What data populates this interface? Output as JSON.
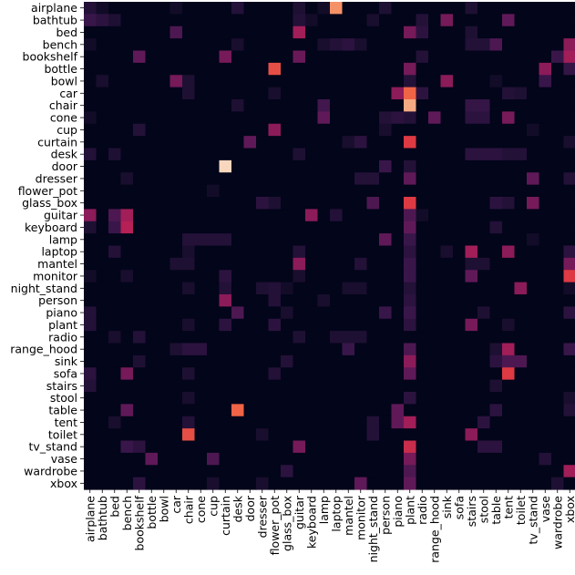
{
  "chart_data": {
    "type": "heatmap",
    "title": "",
    "xlabel": "",
    "ylabel": "",
    "rows": [
      "airplane",
      "bathtub",
      "bed",
      "bench",
      "bookshelf",
      "bottle",
      "bowl",
      "car",
      "chair",
      "cone",
      "cup",
      "curtain",
      "desk",
      "door",
      "dresser",
      "flower_pot",
      "glass_box",
      "guitar",
      "keyboard",
      "lamp",
      "laptop",
      "mantel",
      "monitor",
      "night_stand",
      "person",
      "piano",
      "plant",
      "radio",
      "range_hood",
      "sink",
      "sofa",
      "stairs",
      "stool",
      "table",
      "tent",
      "toilet",
      "tv_stand",
      "vase",
      "wardrobe",
      "xbox"
    ],
    "columns": [
      "airplane",
      "bathtub",
      "bed",
      "bench",
      "bookshelf",
      "bottle",
      "bowl",
      "car",
      "chair",
      "cone",
      "cup",
      "curtain",
      "desk",
      "door",
      "dresser",
      "flower_pot",
      "glass_box",
      "guitar",
      "keyboard",
      "lamp",
      "laptop",
      "mantel",
      "monitor",
      "night_stand",
      "person",
      "piano",
      "plant",
      "radio",
      "range_hood",
      "sink",
      "sofa",
      "stairs",
      "stool",
      "table",
      "tent",
      "toilet",
      "tv_stand",
      "vase",
      "wardrobe",
      "xbox"
    ],
    "value_range": [
      0,
      1
    ],
    "colormap": "rocket",
    "colorbar": false,
    "grid": false,
    "cells": [
      [
        0,
        0,
        0.12
      ],
      [
        0,
        1,
        0.05
      ],
      [
        0,
        7,
        0.06
      ],
      [
        0,
        12,
        0.12
      ],
      [
        0,
        17,
        0.1
      ],
      [
        0,
        19,
        0.06
      ],
      [
        0,
        20,
        0.8
      ],
      [
        0,
        24,
        0.1
      ],
      [
        0,
        31,
        0.1
      ],
      [
        1,
        0,
        0.2
      ],
      [
        1,
        1,
        0.15
      ],
      [
        1,
        2,
        0.1
      ],
      [
        1,
        17,
        0.12
      ],
      [
        1,
        18,
        0.06
      ],
      [
        1,
        23,
        0.08
      ],
      [
        1,
        27,
        0.12
      ],
      [
        1,
        29,
        0.35
      ],
      [
        1,
        34,
        0.3
      ],
      [
        2,
        7,
        0.25
      ],
      [
        2,
        17,
        0.45
      ],
      [
        2,
        26,
        0.35
      ],
      [
        2,
        27,
        0.15
      ],
      [
        2,
        31,
        0.1
      ],
      [
        3,
        0,
        0.06
      ],
      [
        3,
        12,
        0.08
      ],
      [
        3,
        19,
        0.08
      ],
      [
        3,
        20,
        0.12
      ],
      [
        3,
        21,
        0.15
      ],
      [
        3,
        22,
        0.08
      ],
      [
        3,
        31,
        0.12
      ],
      [
        3,
        32,
        0.12
      ],
      [
        3,
        33,
        0.25
      ],
      [
        3,
        39,
        0.4
      ],
      [
        4,
        4,
        0.3
      ],
      [
        4,
        11,
        0.35
      ],
      [
        4,
        17,
        0.32
      ],
      [
        4,
        27,
        0.12
      ],
      [
        4,
        38,
        0.2
      ],
      [
        4,
        39,
        0.45
      ],
      [
        5,
        15,
        0.65
      ],
      [
        5,
        26,
        0.35
      ],
      [
        5,
        37,
        0.4
      ],
      [
        5,
        39,
        0.18
      ],
      [
        6,
        1,
        0.08
      ],
      [
        6,
        7,
        0.35
      ],
      [
        6,
        8,
        0.1
      ],
      [
        6,
        26,
        0.12
      ],
      [
        6,
        29,
        0.4
      ],
      [
        6,
        33,
        0.06
      ],
      [
        6,
        37,
        0.2
      ],
      [
        7,
        8,
        0.1
      ],
      [
        7,
        15,
        0.08
      ],
      [
        7,
        25,
        0.4
      ],
      [
        7,
        26,
        0.7
      ],
      [
        7,
        27,
        0.15
      ],
      [
        7,
        34,
        0.12
      ],
      [
        7,
        35,
        0.1
      ],
      [
        8,
        12,
        0.1
      ],
      [
        8,
        19,
        0.22
      ],
      [
        8,
        26,
        0.85
      ],
      [
        8,
        31,
        0.18
      ],
      [
        8,
        32,
        0.18
      ],
      [
        9,
        0,
        0.06
      ],
      [
        9,
        19,
        0.3
      ],
      [
        9,
        24,
        0.12
      ],
      [
        9,
        25,
        0.15
      ],
      [
        9,
        26,
        0.12
      ],
      [
        9,
        28,
        0.3
      ],
      [
        9,
        31,
        0.15
      ],
      [
        9,
        32,
        0.15
      ],
      [
        9,
        34,
        0.35
      ],
      [
        10,
        4,
        0.12
      ],
      [
        10,
        15,
        0.4
      ],
      [
        10,
        24,
        0.08
      ],
      [
        10,
        36,
        0.06
      ],
      [
        11,
        13,
        0.3
      ],
      [
        11,
        21,
        0.08
      ],
      [
        11,
        22,
        0.15
      ],
      [
        11,
        26,
        0.6
      ],
      [
        11,
        39,
        0.08
      ],
      [
        12,
        0,
        0.12
      ],
      [
        12,
        2,
        0.1
      ],
      [
        12,
        17,
        0.1
      ],
      [
        12,
        31,
        0.15
      ],
      [
        12,
        32,
        0.15
      ],
      [
        12,
        33,
        0.15
      ],
      [
        12,
        34,
        0.12
      ],
      [
        12,
        35,
        0.12
      ],
      [
        13,
        11,
        0.95
      ],
      [
        13,
        24,
        0.2
      ],
      [
        13,
        26,
        0.12
      ],
      [
        14,
        3,
        0.08
      ],
      [
        14,
        22,
        0.12
      ],
      [
        14,
        23,
        0.12
      ],
      [
        14,
        26,
        0.3
      ],
      [
        14,
        36,
        0.3
      ],
      [
        14,
        39,
        0.12
      ],
      [
        15,
        10,
        0.06
      ],
      [
        16,
        14,
        0.15
      ],
      [
        16,
        15,
        0.1
      ],
      [
        16,
        23,
        0.25
      ],
      [
        16,
        26,
        0.6
      ],
      [
        16,
        33,
        0.15
      ],
      [
        16,
        34,
        0.12
      ],
      [
        16,
        36,
        0.35
      ],
      [
        17,
        0,
        0.4
      ],
      [
        17,
        2,
        0.25
      ],
      [
        17,
        3,
        0.45
      ],
      [
        17,
        18,
        0.4
      ],
      [
        17,
        20,
        0.12
      ],
      [
        17,
        26,
        0.25
      ],
      [
        17,
        27,
        0.06
      ],
      [
        18,
        0,
        0.1
      ],
      [
        18,
        2,
        0.2
      ],
      [
        18,
        3,
        0.5
      ],
      [
        18,
        26,
        0.3
      ],
      [
        18,
        33,
        0.12
      ],
      [
        19,
        8,
        0.12
      ],
      [
        19,
        9,
        0.12
      ],
      [
        19,
        10,
        0.12
      ],
      [
        19,
        11,
        0.12
      ],
      [
        19,
        24,
        0.3
      ],
      [
        19,
        26,
        0.2
      ],
      [
        19,
        36,
        0.06
      ],
      [
        20,
        2,
        0.12
      ],
      [
        20,
        8,
        0.08
      ],
      [
        20,
        17,
        0.12
      ],
      [
        20,
        26,
        0.15
      ],
      [
        20,
        29,
        0.08
      ],
      [
        20,
        31,
        0.45
      ],
      [
        20,
        34,
        0.4
      ],
      [
        20,
        39,
        0.15
      ],
      [
        21,
        7,
        0.1
      ],
      [
        21,
        8,
        0.1
      ],
      [
        21,
        17,
        0.4
      ],
      [
        21,
        22,
        0.12
      ],
      [
        21,
        26,
        0.2
      ],
      [
        21,
        31,
        0.1
      ],
      [
        21,
        32,
        0.1
      ],
      [
        21,
        39,
        0.35
      ],
      [
        22,
        0,
        0.06
      ],
      [
        22,
        3,
        0.08
      ],
      [
        22,
        11,
        0.15
      ],
      [
        22,
        17,
        0.08
      ],
      [
        22,
        26,
        0.2
      ],
      [
        22,
        31,
        0.3
      ],
      [
        22,
        39,
        0.6
      ],
      [
        23,
        8,
        0.08
      ],
      [
        23,
        11,
        0.12
      ],
      [
        23,
        14,
        0.1
      ],
      [
        23,
        15,
        0.12
      ],
      [
        23,
        16,
        0.06
      ],
      [
        23,
        21,
        0.08
      ],
      [
        23,
        22,
        0.08
      ],
      [
        23,
        26,
        0.12
      ],
      [
        23,
        35,
        0.4
      ],
      [
        23,
        39,
        0.06
      ],
      [
        24,
        11,
        0.4
      ],
      [
        24,
        15,
        0.12
      ],
      [
        24,
        19,
        0.08
      ],
      [
        24,
        26,
        0.15
      ],
      [
        25,
        0,
        0.12
      ],
      [
        25,
        12,
        0.25
      ],
      [
        25,
        16,
        0.08
      ],
      [
        25,
        24,
        0.2
      ],
      [
        25,
        26,
        0.2
      ],
      [
        25,
        32,
        0.1
      ],
      [
        25,
        39,
        0.15
      ],
      [
        26,
        0,
        0.12
      ],
      [
        26,
        8,
        0.08
      ],
      [
        26,
        11,
        0.15
      ],
      [
        26,
        15,
        0.15
      ],
      [
        26,
        26,
        0.15
      ],
      [
        26,
        31,
        0.35
      ],
      [
        26,
        34,
        0.08
      ],
      [
        27,
        2,
        0.08
      ],
      [
        27,
        4,
        0.12
      ],
      [
        27,
        17,
        0.1
      ],
      [
        27,
        20,
        0.1
      ],
      [
        27,
        21,
        0.1
      ],
      [
        27,
        22,
        0.1
      ],
      [
        28,
        7,
        0.1
      ],
      [
        28,
        8,
        0.15
      ],
      [
        28,
        9,
        0.15
      ],
      [
        28,
        21,
        0.2
      ],
      [
        28,
        26,
        0.25
      ],
      [
        28,
        33,
        0.1
      ],
      [
        28,
        34,
        0.45
      ],
      [
        28,
        39,
        0.2
      ],
      [
        29,
        4,
        0.1
      ],
      [
        29,
        16,
        0.12
      ],
      [
        29,
        26,
        0.4
      ],
      [
        29,
        33,
        0.15
      ],
      [
        29,
        34,
        0.25
      ],
      [
        29,
        35,
        0.25
      ],
      [
        30,
        0,
        0.15
      ],
      [
        30,
        3,
        0.35
      ],
      [
        30,
        8,
        0.1
      ],
      [
        30,
        15,
        0.12
      ],
      [
        30,
        26,
        0.3
      ],
      [
        30,
        34,
        0.6
      ],
      [
        31,
        0,
        0.12
      ],
      [
        31,
        33,
        0.1
      ],
      [
        32,
        8,
        0.08
      ],
      [
        32,
        26,
        0.15
      ],
      [
        32,
        39,
        0.08
      ],
      [
        33,
        3,
        0.3
      ],
      [
        33,
        12,
        0.7
      ],
      [
        33,
        25,
        0.3
      ],
      [
        33,
        33,
        0.15
      ],
      [
        33,
        39,
        0.12
      ],
      [
        34,
        2,
        0.08
      ],
      [
        34,
        8,
        0.12
      ],
      [
        34,
        23,
        0.12
      ],
      [
        34,
        25,
        0.3
      ],
      [
        34,
        26,
        0.45
      ],
      [
        34,
        32,
        0.15
      ],
      [
        35,
        8,
        0.65
      ],
      [
        35,
        14,
        0.08
      ],
      [
        35,
        23,
        0.12
      ],
      [
        35,
        31,
        0.4
      ],
      [
        36,
        3,
        0.2
      ],
      [
        36,
        4,
        0.15
      ],
      [
        36,
        17,
        0.35
      ],
      [
        36,
        26,
        0.55
      ],
      [
        36,
        32,
        0.15
      ],
      [
        36,
        33,
        0.15
      ],
      [
        37,
        5,
        0.3
      ],
      [
        37,
        10,
        0.25
      ],
      [
        37,
        26,
        0.35
      ],
      [
        37,
        37,
        0.12
      ],
      [
        38,
        16,
        0.15
      ],
      [
        38,
        26,
        0.25
      ],
      [
        38,
        39,
        0.45
      ],
      [
        39,
        4,
        0.15
      ],
      [
        39,
        10,
        0.08
      ],
      [
        39,
        14,
        0.08
      ],
      [
        39,
        22,
        0.3
      ],
      [
        39,
        26,
        0.3
      ],
      [
        39,
        38,
        0.1
      ]
    ]
  }
}
